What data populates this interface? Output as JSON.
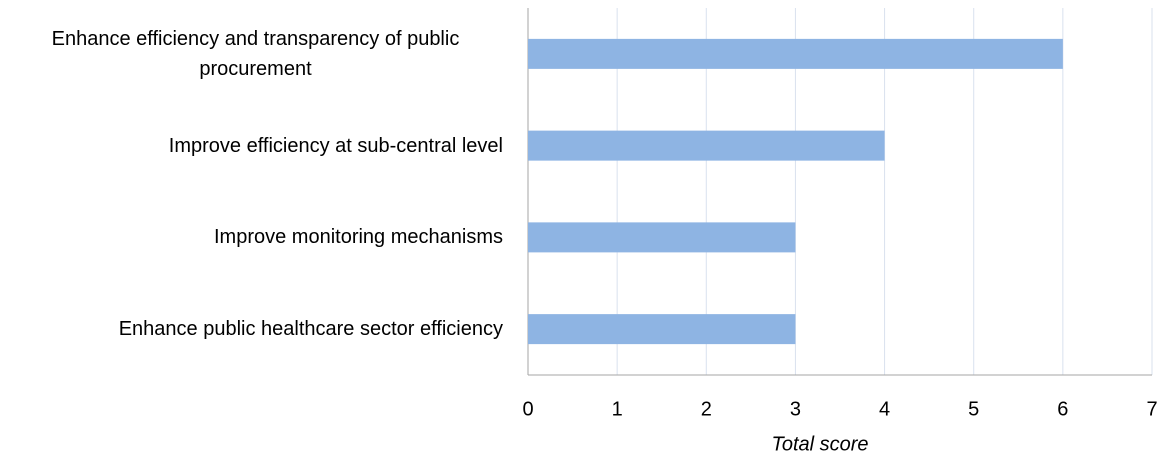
{
  "chart_data": {
    "type": "barh",
    "categories": [
      "Enhance efficiency and transparency of public procurement",
      "Improve efficiency at sub-central level",
      "Improve monitoring mechanisms",
      "Enhance public healthcare sector efficiency"
    ],
    "values": [
      6,
      4,
      3,
      3
    ],
    "color": "#8eb4e3",
    "xlabel": "Total score",
    "xlim": [
      0,
      7
    ],
    "xticks": [
      0,
      1,
      2,
      3,
      4,
      5,
      6,
      7
    ],
    "grid": true
  }
}
